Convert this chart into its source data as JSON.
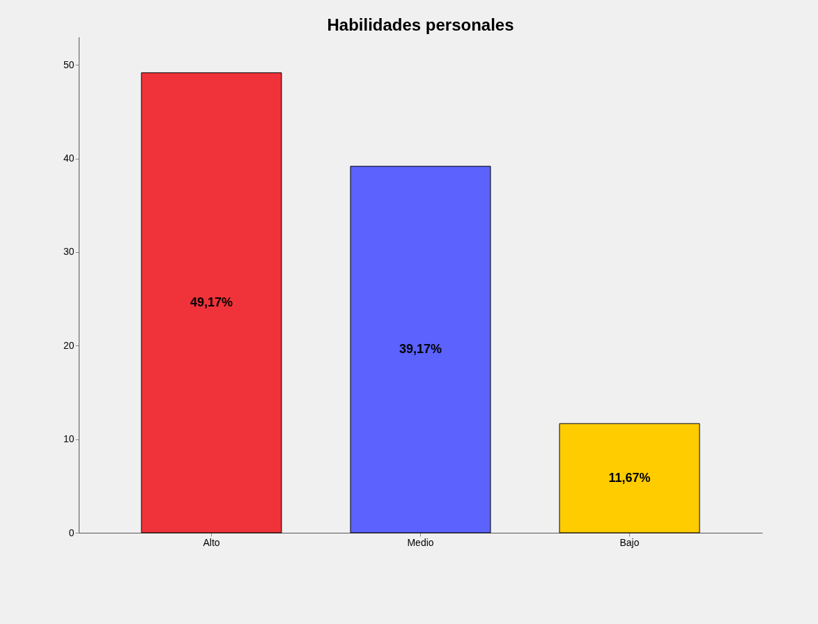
{
  "chart_data": {
    "type": "bar",
    "title": "Habilidades personales",
    "categories": [
      "Alto",
      "Medio",
      "Bajo"
    ],
    "values": [
      49.17,
      39.17,
      11.67
    ],
    "colors": [
      "#f0333a",
      "#5b62fe",
      "#ffcc00"
    ],
    "value_labels": [
      "49,17%",
      "39,17%",
      "11,67%"
    ],
    "ylim": [
      0,
      53
    ],
    "yticks": [
      0,
      10,
      20,
      30,
      40,
      50
    ],
    "grid": false
  }
}
